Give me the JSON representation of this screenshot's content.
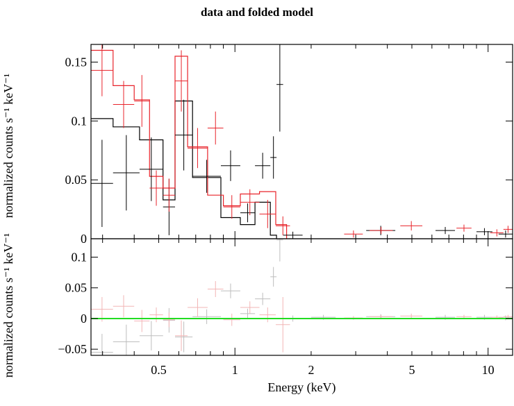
{
  "title": "data and folded model",
  "colors": {
    "black_series": "#000000",
    "red_series": "#e8232a",
    "zero_line": "#22dd22"
  },
  "chart_data": [
    {
      "type": "line",
      "panel": "top",
      "title": "data and folded model",
      "xlabel": "",
      "ylabel": "normalized counts s⁻¹ keV⁻¹",
      "xscale": "log",
      "xlim": [
        0.27,
        12.5
      ],
      "ylim": [
        0,
        0.165
      ],
      "yticks": [
        0,
        0.05,
        0.1,
        0.15
      ],
      "ytick_labels": [
        "0",
        "0.05",
        "0.1",
        "0.15"
      ],
      "grid": false,
      "series": [
        {
          "color": "#000000",
          "data": [
            {
              "x": [
                0.27,
                0.33
              ],
              "y": 0.047,
              "yerr": 0.037
            },
            {
              "x": [
                0.33,
                0.42
              ],
              "y": 0.056,
              "yerr": 0.032
            },
            {
              "x": [
                0.42,
                0.52
              ],
              "y": 0.059,
              "yerr": 0.027
            },
            {
              "x": [
                0.52,
                0.58
              ],
              "y": 0.027,
              "yerr": 0.024
            },
            {
              "x": [
                0.58,
                0.68
              ],
              "y": 0.088,
              "yerr": 0.03
            },
            {
              "x": [
                0.68,
                0.88
              ],
              "y": 0.053,
              "yerr": 0.014
            },
            {
              "x": [
                0.88,
                1.05
              ],
              "y": 0.062,
              "yerr": 0.013
            },
            {
              "x": [
                1.05,
                1.2
              ],
              "y": 0.022,
              "yerr": 0.008
            },
            {
              "x": [
                1.2,
                1.38
              ],
              "y": 0.062,
              "yerr": 0.011
            },
            {
              "x": [
                1.38,
                1.46
              ],
              "y": 0.069,
              "yerr": 0.018
            },
            {
              "x": [
                1.46,
                1.55
              ],
              "y": 0.131,
              "yerr": 0.04
            },
            {
              "x": [
                1.55,
                1.85
              ],
              "y": 0.003,
              "yerr": 0.003
            },
            {
              "x": [
                3.3,
                4.3
              ],
              "y": 0.007,
              "yerr": 0.004
            },
            {
              "x": [
                6.2,
                7.4
              ],
              "y": 0.007,
              "yerr": 0.003
            },
            {
              "x": [
                9.0,
                10.4
              ],
              "y": 0.006,
              "yerr": 0.003
            },
            {
              "x": [
                11.0,
                12.5
              ],
              "y": 0.004,
              "yerr": 0.003
            }
          ],
          "model": {
            "edges": [
              0.27,
              0.33,
              0.42,
              0.52,
              0.58,
              0.68,
              0.88,
              1.05,
              1.2,
              1.38,
              1.46
            ],
            "values": [
              0.102,
              0.095,
              0.084,
              0.033,
              0.117,
              0.052,
              0.018,
              0.012,
              0.031,
              0.003
            ]
          }
        },
        {
          "color": "#e8232a",
          "data": [
            {
              "x": [
                0.27,
                0.33
              ],
              "y": 0.143,
              "yerr": 0.022
            },
            {
              "x": [
                0.33,
                0.4
              ],
              "y": 0.114,
              "yerr": 0.02
            },
            {
              "x": [
                0.4,
                0.46
              ],
              "y": 0.117,
              "yerr": 0.022
            },
            {
              "x": [
                0.46,
                0.52
              ],
              "y": 0.043,
              "yerr": 0.015
            },
            {
              "x": [
                0.52,
                0.58
              ],
              "y": 0.037,
              "yerr": 0.014
            },
            {
              "x": [
                0.58,
                0.65
              ],
              "y": 0.134,
              "yerr": 0.026
            },
            {
              "x": [
                0.65,
                0.78
              ],
              "y": 0.077,
              "yerr": 0.017
            },
            {
              "x": [
                0.78,
                0.9
              ],
              "y": 0.094,
              "yerr": 0.014
            },
            {
              "x": [
                0.9,
                1.05
              ],
              "y": 0.027,
              "yerr": 0.01
            },
            {
              "x": [
                1.05,
                1.25
              ],
              "y": 0.031,
              "yerr": 0.011
            },
            {
              "x": [
                1.25,
                1.45
              ],
              "y": 0.021,
              "yerr": 0.012
            },
            {
              "x": [
                1.45,
                1.65
              ],
              "y": 0.011,
              "yerr": 0.008
            },
            {
              "x": [
                2.7,
                3.2
              ],
              "y": 0.004,
              "yerr": 0.003
            },
            {
              "x": [
                3.4,
                4.2
              ],
              "y": 0.007,
              "yerr": 0.003
            },
            {
              "x": [
                4.5,
                5.5
              ],
              "y": 0.011,
              "yerr": 0.004
            },
            {
              "x": [
                7.5,
                8.6
              ],
              "y": 0.009,
              "yerr": 0.003
            },
            {
              "x": [
                10.2,
                11.5
              ],
              "y": 0.005,
              "yerr": 0.003
            },
            {
              "x": [
                11.5,
                12.5
              ],
              "y": 0.008,
              "yerr": 0.003
            }
          ],
          "model": {
            "edges": [
              0.27,
              0.33,
              0.4,
              0.46,
              0.52,
              0.58,
              0.65,
              0.78,
              0.9,
              1.05,
              1.25,
              1.45,
              1.6
            ],
            "values": [
              0.16,
              0.13,
              0.118,
              0.053,
              0.043,
              0.155,
              0.078,
              0.037,
              0.028,
              0.038,
              0.04,
              0.012
            ]
          }
        }
      ]
    },
    {
      "type": "scatter",
      "panel": "bottom",
      "xlabel": "Energy (keV)",
      "ylabel": "normalized counts s⁻¹ keV⁻¹",
      "xscale": "log",
      "xlim": [
        0.27,
        12.5
      ],
      "ylim": [
        -0.06,
        0.13
      ],
      "yticks": [
        -0.05,
        0,
        0.05,
        0.1
      ],
      "ytick_labels": [
        "−0.05",
        "0",
        "0.05",
        "0.1"
      ],
      "xticks": [
        0.5,
        1,
        2,
        5,
        10
      ],
      "xtick_labels": [
        "0.5",
        "1",
        "2",
        "5",
        "10"
      ],
      "grid": false,
      "zero_line": 0,
      "series": [
        {
          "color": "#bdbdbd",
          "data": [
            {
              "x": [
                0.27,
                0.33
              ],
              "y": -0.055,
              "yerr": 0.03
            },
            {
              "x": [
                0.33,
                0.42
              ],
              "y": -0.038,
              "yerr": 0.028
            },
            {
              "x": [
                0.42,
                0.52
              ],
              "y": -0.028,
              "yerr": 0.024
            },
            {
              "x": [
                0.52,
                0.58
              ],
              "y": -0.003,
              "yerr": 0.02
            },
            {
              "x": [
                0.58,
                0.68
              ],
              "y": -0.03,
              "yerr": 0.025
            },
            {
              "x": [
                0.68,
                0.88
              ],
              "y": 0.003,
              "yerr": 0.012
            },
            {
              "x": [
                0.88,
                1.05
              ],
              "y": 0.045,
              "yerr": 0.012
            },
            {
              "x": [
                1.05,
                1.2
              ],
              "y": 0.008,
              "yerr": 0.008
            },
            {
              "x": [
                1.2,
                1.38
              ],
              "y": 0.032,
              "yerr": 0.01
            },
            {
              "x": [
                1.38,
                1.46
              ],
              "y": 0.068,
              "yerr": 0.016
            },
            {
              "x": [
                1.46,
                1.55
              ],
              "y": 0.128,
              "yerr": 0.035
            },
            {
              "x": [
                1.55,
                1.85
              ],
              "y": 0.0,
              "yerr": 0.005
            },
            {
              "x": [
                2.0,
                2.5
              ],
              "y": 0.002,
              "yerr": 0.004
            },
            {
              "x": [
                3.3,
                4.3
              ],
              "y": 0.003,
              "yerr": 0.004
            },
            {
              "x": [
                6.2,
                7.4
              ],
              "y": 0.002,
              "yerr": 0.004
            },
            {
              "x": [
                9.0,
                10.4
              ],
              "y": 0.002,
              "yerr": 0.004
            },
            {
              "x": [
                11.0,
                12.5
              ],
              "y": 0.001,
              "yerr": 0.004
            }
          ]
        },
        {
          "color": "#f2b5b5",
          "data": [
            {
              "x": [
                0.27,
                0.33
              ],
              "y": 0.015,
              "yerr": 0.02
            },
            {
              "x": [
                0.33,
                0.4
              ],
              "y": 0.02,
              "yerr": 0.018
            },
            {
              "x": [
                0.4,
                0.46
              ],
              "y": -0.004,
              "yerr": 0.018
            },
            {
              "x": [
                0.46,
                0.52
              ],
              "y": 0.006,
              "yerr": 0.012
            },
            {
              "x": [
                0.52,
                0.58
              ],
              "y": -0.002,
              "yerr": 0.012
            },
            {
              "x": [
                0.58,
                0.65
              ],
              "y": -0.028,
              "yerr": 0.025
            },
            {
              "x": [
                0.65,
                0.78
              ],
              "y": 0.018,
              "yerr": 0.015
            },
            {
              "x": [
                0.78,
                0.9
              ],
              "y": 0.048,
              "yerr": 0.013
            },
            {
              "x": [
                0.9,
                1.05
              ],
              "y": -0.002,
              "yerr": 0.01
            },
            {
              "x": [
                1.05,
                1.25
              ],
              "y": 0.018,
              "yerr": 0.01
            },
            {
              "x": [
                1.25,
                1.45
              ],
              "y": 0.006,
              "yerr": 0.012
            },
            {
              "x": [
                1.45,
                1.65
              ],
              "y": -0.01,
              "yerr": 0.045
            },
            {
              "x": [
                2.7,
                3.2
              ],
              "y": 0.001,
              "yerr": 0.003
            },
            {
              "x": [
                3.4,
                4.2
              ],
              "y": 0.003,
              "yerr": 0.003
            },
            {
              "x": [
                4.5,
                5.5
              ],
              "y": 0.004,
              "yerr": 0.004
            },
            {
              "x": [
                7.5,
                8.6
              ],
              "y": 0.003,
              "yerr": 0.003
            },
            {
              "x": [
                10.2,
                11.5
              ],
              "y": 0.002,
              "yerr": 0.003
            },
            {
              "x": [
                11.5,
                12.5
              ],
              "y": 0.003,
              "yerr": 0.003
            }
          ]
        }
      ]
    }
  ]
}
